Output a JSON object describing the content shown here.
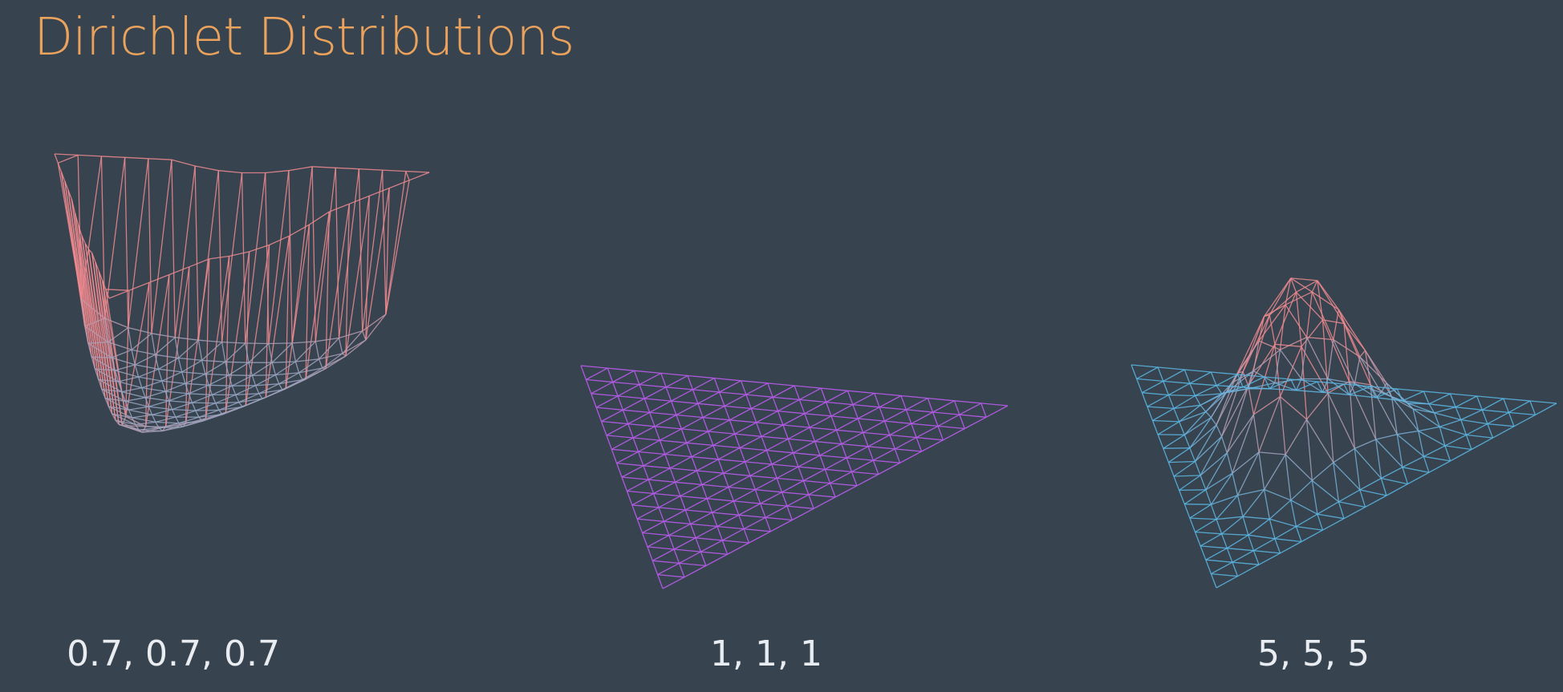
{
  "title": "Dirichlet Distributions",
  "panels": [
    {
      "alphas": [
        0.7,
        0.7,
        0.7
      ],
      "label": "0.7, 0.7, 0.7",
      "surface": "corner-peaks"
    },
    {
      "alphas": [
        1,
        1,
        1
      ],
      "label": "1, 1, 1",
      "surface": "flat"
    },
    {
      "alphas": [
        5,
        5,
        5
      ],
      "label": "5, 5, 5",
      "surface": "center-peak"
    }
  ],
  "colors": {
    "background": "#37444f",
    "title": "#eaa25c",
    "label": "#e9edf1",
    "low": "#5ab8e6",
    "flat": "#b35be6",
    "high": "#f08a8f"
  }
}
